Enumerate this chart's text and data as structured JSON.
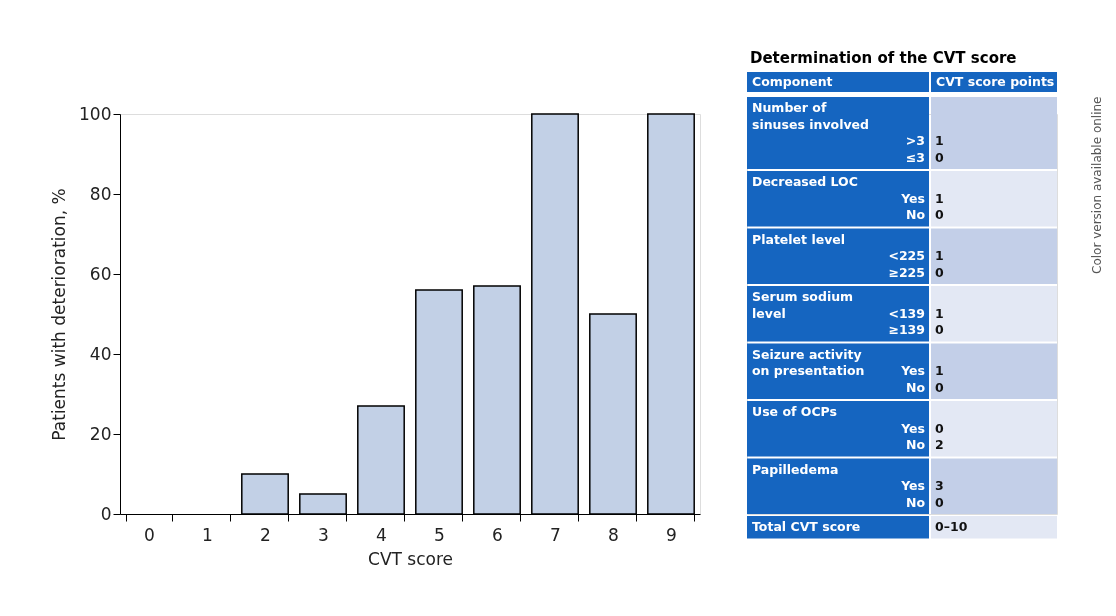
{
  "chart_data": [
    {
      "type": "bar",
      "categories": [
        "0",
        "1",
        "2",
        "3",
        "4",
        "5",
        "6",
        "7",
        "8",
        "9"
      ],
      "values": [
        0,
        0,
        10,
        5,
        27,
        56,
        57,
        100,
        50,
        100
      ],
      "color": "#c2d0e6",
      "xlabel": "CVT score",
      "ylabel": "Patients with deterioration, %",
      "ylim": [
        0,
        100
      ],
      "yticks": [
        0,
        20,
        40,
        60,
        80,
        100
      ],
      "grid": false
    },
    {
      "type": "other",
      "title": "Determination of the CVT score",
      "categories": [
        "Component",
        "CVT score points"
      ],
      "y_categories": [
        "Number of sinuses involved",
        "Decreased LOC",
        "Platelet level",
        "Serum sodium level",
        "Seizure activity on presentation",
        "Use of OCPs",
        "Papilledema",
        "Total CVT score"
      ],
      "cell_labels": [
        [
          [
            ">3",
            "≤3"
          ],
          [
            "1",
            "0"
          ]
        ],
        [
          [
            "Yes",
            "No"
          ],
          [
            "1",
            "0"
          ]
        ],
        [
          [
            "<225",
            "≥225"
          ],
          [
            "1",
            "0"
          ]
        ],
        [
          [
            "<139",
            "≥139"
          ],
          [
            "1",
            "0"
          ]
        ],
        [
          [
            "Yes",
            "No"
          ],
          [
            "1",
            "0"
          ]
        ],
        [
          [
            "Yes",
            "No"
          ],
          [
            "0",
            "2"
          ]
        ],
        [
          [
            "Yes",
            "No"
          ],
          [
            "3",
            "0"
          ]
        ],
        [
          null,
          [
            "0–10"
          ]
        ]
      ],
      "annotations": [
        "Color version available online"
      ]
    }
  ]
}
